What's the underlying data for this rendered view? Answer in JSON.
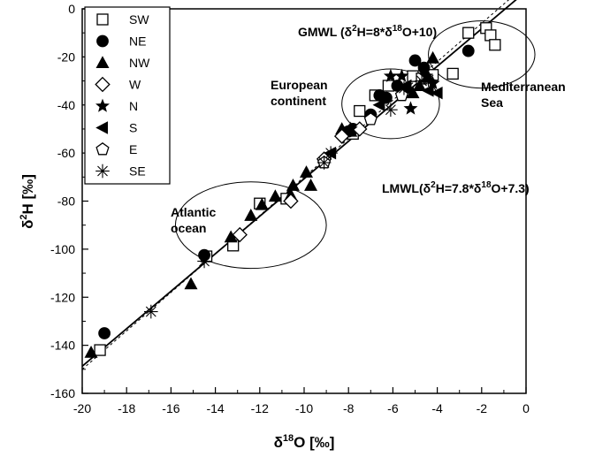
{
  "chart_data": {
    "type": "scatter",
    "xlabel": "δ18O [‰]",
    "ylabel": "δ2H [‰]",
    "xlim": [
      -20,
      0
    ],
    "ylim": [
      -160,
      0
    ],
    "x_ticks": [
      -20,
      -18,
      -16,
      -14,
      -12,
      -10,
      -8,
      -6,
      -4,
      -2,
      0
    ],
    "y_ticks": [
      -160,
      -140,
      -120,
      -100,
      -80,
      -60,
      -40,
      -20,
      0
    ],
    "legend_position": "top-left",
    "series": [
      {
        "name": "SW",
        "marker": "open-square",
        "points": [
          [
            -19.2,
            -142
          ],
          [
            -14.4,
            -103
          ],
          [
            -13.2,
            -98.5
          ],
          [
            -12.0,
            -81
          ],
          [
            -10.8,
            -79
          ],
          [
            -7.8,
            -52
          ],
          [
            -7.5,
            -42.5
          ],
          [
            -6.8,
            -36
          ],
          [
            -6.2,
            -32
          ],
          [
            -5.1,
            -28
          ],
          [
            -4.7,
            -29
          ],
          [
            -4.2,
            -27.5
          ],
          [
            -3.3,
            -27
          ],
          [
            -2.6,
            -10
          ],
          [
            -1.8,
            -8
          ],
          [
            -1.6,
            -11
          ],
          [
            -1.4,
            -15
          ]
        ]
      },
      {
        "name": "NE",
        "marker": "filled-circle",
        "points": [
          [
            -19.0,
            -135
          ],
          [
            -14.5,
            -102.5
          ],
          [
            -8.0,
            -51
          ],
          [
            -7.8,
            -50
          ],
          [
            -7.0,
            -44
          ],
          [
            -6.6,
            -36
          ],
          [
            -6.3,
            -37
          ],
          [
            -5.8,
            -32
          ],
          [
            -5.0,
            -21.5
          ],
          [
            -4.6,
            -24.5
          ],
          [
            -2.6,
            -17.5
          ]
        ]
      },
      {
        "name": "NW",
        "marker": "filled-triangle",
        "points": [
          [
            -19.6,
            -143
          ],
          [
            -15.1,
            -114.5
          ],
          [
            -13.3,
            -95
          ],
          [
            -12.4,
            -86
          ],
          [
            -11.9,
            -81.5
          ],
          [
            -11.3,
            -78
          ],
          [
            -10.6,
            -77.5
          ],
          [
            -10.5,
            -73.5
          ],
          [
            -9.9,
            -68
          ],
          [
            -9.7,
            -73.5
          ],
          [
            -8.3,
            -50
          ],
          [
            -7.9,
            -51
          ],
          [
            -5.4,
            -33
          ],
          [
            -5.1,
            -35
          ],
          [
            -4.8,
            -32
          ],
          [
            -4.2,
            -20.5
          ],
          [
            -4.4,
            -28.5
          ]
        ]
      },
      {
        "name": "W",
        "marker": "open-diamond",
        "points": [
          [
            -12.9,
            -94
          ],
          [
            -10.6,
            -80
          ],
          [
            -9.1,
            -62.5
          ],
          [
            -8.3,
            -53
          ],
          [
            -7.5,
            -50
          ]
        ]
      },
      {
        "name": "N",
        "marker": "filled-star",
        "points": [
          [
            -7.9,
            -50
          ],
          [
            -6.1,
            -28
          ],
          [
            -5.6,
            -28
          ],
          [
            -5.2,
            -41.5
          ],
          [
            -4.5,
            -28
          ],
          [
            -4.2,
            -31
          ]
        ]
      },
      {
        "name": "S",
        "marker": "left-triangle",
        "points": [
          [
            -8.8,
            -60
          ],
          [
            -6.6,
            -40
          ],
          [
            -5.4,
            -32
          ],
          [
            -4.4,
            -34
          ],
          [
            -4.0,
            -35
          ]
        ]
      },
      {
        "name": "E",
        "marker": "open-pentagon",
        "points": [
          [
            -9.1,
            -64
          ],
          [
            -7.0,
            -46
          ],
          [
            -5.6,
            -36
          ]
        ]
      },
      {
        "name": "SE",
        "marker": "asterisk",
        "points": [
          [
            -16.9,
            -126
          ],
          [
            -14.5,
            -105
          ],
          [
            -9.1,
            -64
          ],
          [
            -8.8,
            -60
          ],
          [
            -6.1,
            -42
          ],
          [
            -5.5,
            -33
          ],
          [
            -4.7,
            -30
          ],
          [
            -4.4,
            -29.5
          ]
        ]
      }
    ],
    "lines": [
      {
        "name": "GMWL",
        "slope": 8,
        "intercept": 10,
        "style": "dashed"
      },
      {
        "name": "LMWL",
        "slope": 7.8,
        "intercept": 7.3,
        "style": "solid"
      }
    ],
    "regions": [
      {
        "label": "Atlantic ocean",
        "cx": -12.4,
        "cy": -90,
        "rx": 3.4,
        "ry": 18
      },
      {
        "label": "European continent",
        "cx": -6.1,
        "cy": -39.5,
        "rx": 2.2,
        "ry": 14.5
      },
      {
        "label": "Mediterranean Sea",
        "cx": -2.0,
        "cy": -19,
        "rx": 2.4,
        "ry": 14
      }
    ],
    "annotations": {
      "gmwl": "GMWL (δ2H=8*δ18O+10)",
      "lmwl": "LMWL(δ2H=7.8*δ18O+7.3)",
      "european_line1": "European",
      "european_line2": "continent",
      "mediterranean_line1": "Mediterranean",
      "mediterranean_line2": "Sea",
      "atlantic_line1": "Atlantic",
      "atlantic_line2": "ocean"
    }
  }
}
